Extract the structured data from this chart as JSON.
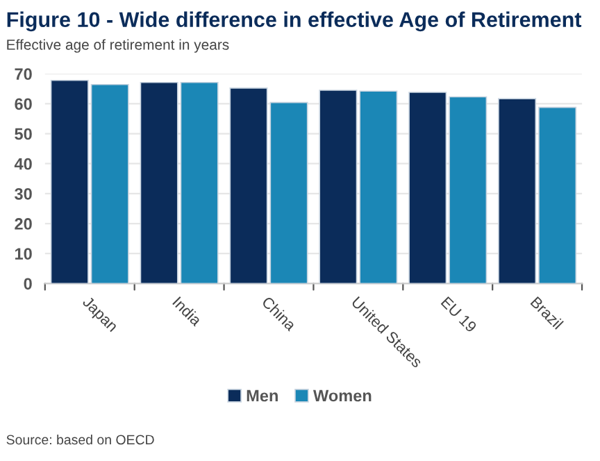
{
  "chart_data": {
    "type": "bar",
    "title": "Figure 10 - Wide difference in effective Age of Retirement",
    "subtitle": "Effective age of retirement in years",
    "categories": [
      "Japan",
      "India",
      "China",
      "United States",
      "EU 19",
      "Brazil"
    ],
    "series": [
      {
        "name": "Men",
        "color": "#0b2c5a",
        "values": [
          67.8,
          67.1,
          65.2,
          64.5,
          63.8,
          61.7
        ]
      },
      {
        "name": "Women",
        "color": "#1b87b6",
        "values": [
          66.4,
          67.1,
          60.4,
          64.2,
          62.3,
          58.8
        ]
      }
    ],
    "ylim": [
      0,
      70
    ],
    "yticks": [
      0,
      10,
      20,
      30,
      40,
      50,
      60,
      70
    ],
    "grid": "y",
    "legend": "bottom",
    "annotations": [
      "Source: based on OECD"
    ]
  }
}
